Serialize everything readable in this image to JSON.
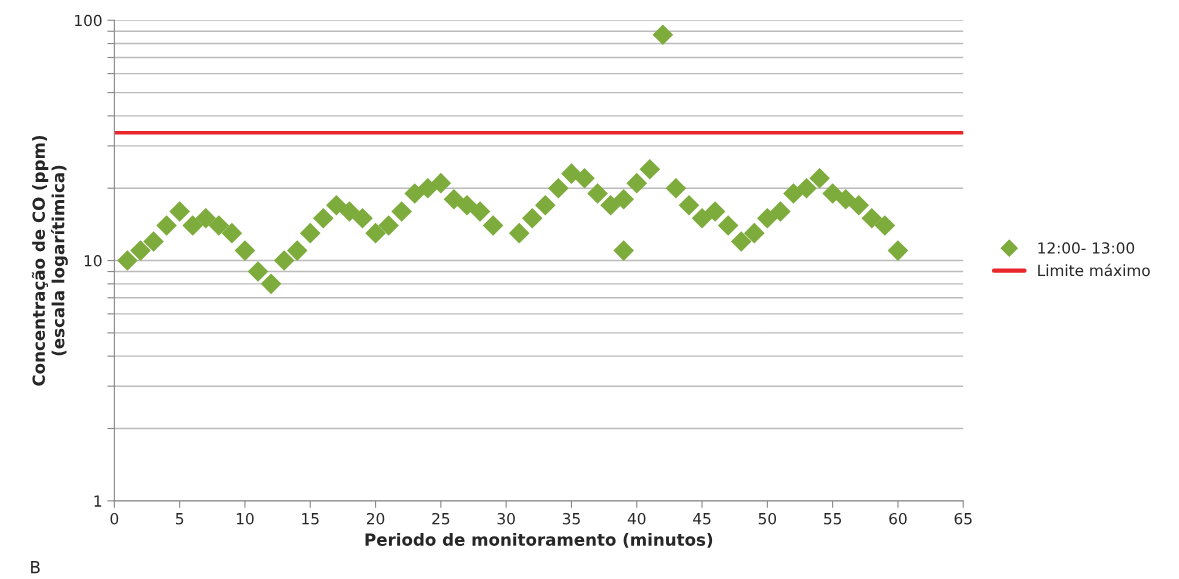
{
  "chart_data": {
    "type": "scatter",
    "xlabel": "Periodo de monitoramento (minutos)",
    "ylabel": "Concentração de CO (ppm)\n(escala logarítimica)",
    "x": [
      1,
      2,
      3,
      4,
      5,
      6,
      7,
      8,
      9,
      10,
      11,
      12,
      13,
      14,
      15,
      16,
      17,
      18,
      19,
      20,
      21,
      22,
      23,
      24,
      25,
      26,
      27,
      28,
      29,
      31,
      32,
      33,
      34,
      35,
      36,
      37,
      38,
      39,
      39,
      40,
      41,
      42,
      43,
      44,
      45,
      46,
      47,
      48,
      49,
      50,
      51,
      52,
      53,
      54,
      55,
      56,
      57,
      58,
      59,
      60
    ],
    "series": [
      {
        "name": "12:00- 13:00",
        "color": "#7dab3c",
        "marker": "diamond",
        "values": [
          10,
          11,
          12,
          14,
          16,
          14,
          15,
          14,
          13,
          11,
          9,
          8,
          10,
          11,
          13,
          15,
          17,
          16,
          15,
          13,
          14,
          16,
          19,
          20,
          21,
          18,
          17,
          16,
          14,
          13,
          15,
          17,
          20,
          23,
          22,
          19,
          17,
          18,
          11,
          21,
          24,
          87,
          20,
          17,
          15,
          16,
          14,
          12,
          13,
          15,
          16,
          19,
          20,
          22,
          19,
          18,
          17,
          15,
          14,
          11
        ]
      }
    ],
    "ref_lines": [
      {
        "axis": "y",
        "value": 34,
        "label": "Limite máximo",
        "color": "#e8262b"
      }
    ],
    "log": "y",
    "xlim": [
      0,
      65
    ],
    "xticks": [
      0,
      5,
      10,
      15,
      20,
      25,
      30,
      35,
      40,
      45,
      50,
      55,
      60,
      65
    ],
    "ylim": [
      1,
      100
    ],
    "yticks": [
      1,
      {
        "value": 2,
        "label": null
      },
      {
        "value": 3,
        "label": null
      },
      {
        "value": 4,
        "label": null
      },
      {
        "value": 5,
        "label": null
      },
      {
        "value": 6,
        "label": null
      },
      {
        "value": 7,
        "label": null
      },
      {
        "value": 8,
        "label": null
      },
      {
        "value": 9,
        "label": null
      },
      10,
      {
        "value": 20,
        "label": null
      },
      {
        "value": 30,
        "label": null
      },
      {
        "value": 40,
        "label": null
      },
      {
        "value": 50,
        "label": null
      },
      {
        "value": 60,
        "label": null
      },
      {
        "value": 70,
        "label": null
      },
      {
        "value": 80,
        "label": null
      },
      {
        "value": 90,
        "label": null
      },
      100
    ],
    "grid": "y",
    "legend": "right",
    "annotations": [
      "B"
    ]
  }
}
